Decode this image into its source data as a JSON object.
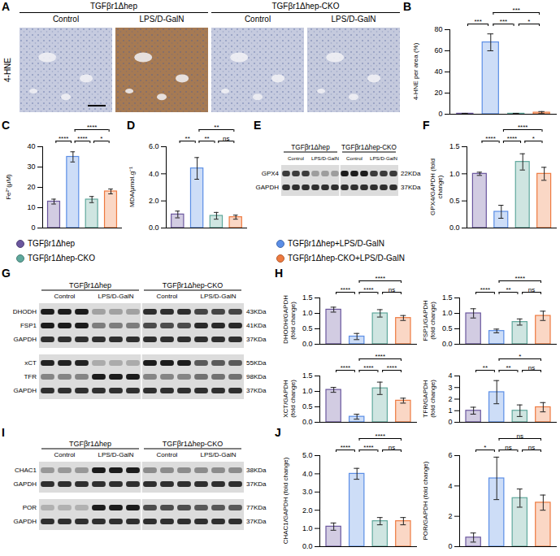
{
  "panel_labels": [
    "A",
    "B",
    "C",
    "D",
    "E",
    "F",
    "G",
    "H",
    "I",
    "J"
  ],
  "genotypes": [
    "TGFβr1Δhep",
    "TGFβr1Δhep-CKO"
  ],
  "treatments": [
    "Control",
    "LPS/D-GalN"
  ],
  "micrographs": {
    "stain": "4-HNE"
  },
  "groups": [
    {
      "name": "TGFβr1Δhep",
      "color": "#6b579e"
    },
    {
      "name": "TGFβr1Δhep+LPS/D-GalN",
      "color": "#5b8ee6"
    },
    {
      "name": "TGFβr1Δhep-CKO",
      "color": "#5fa89c"
    },
    {
      "name": "TGFβr1Δhep-CKO+LPS/D-GalN",
      "color": "#ee7a40"
    }
  ],
  "blots": [
    {
      "lanes_per_group": 3,
      "blocks": [
        [
          {
            "label": "GPX4",
            "kda": "22KDa"
          },
          {
            "label": "GAPDH",
            "kda": "37KDa"
          }
        ]
      ]
    },
    {
      "lanes_per_group": 3,
      "blocks": [
        [
          {
            "label": "DHODH",
            "kda": "43KDa"
          },
          {
            "label": "FSP1",
            "kda": "41KDa"
          },
          {
            "label": "GAPDH",
            "kda": "37KDa"
          }
        ],
        [
          {
            "label": "xCT",
            "kda": "55KDa"
          },
          {
            "label": "TFR",
            "kda": "98KDa"
          },
          {
            "label": "GAPDH",
            "kda": "37KDa"
          }
        ]
      ]
    },
    {
      "lanes_per_group": 3,
      "blocks": [
        [
          {
            "label": "CHAC1",
            "kda": "38KDa"
          },
          {
            "label": "GAPDH",
            "kda": "37KDa"
          }
        ],
        [
          {
            "label": "POR",
            "kda": "77KDa"
          },
          {
            "label": "GAPDH",
            "kda": "37KDa"
          }
        ]
      ]
    }
  ],
  "chart_data": [
    {
      "type": "bar",
      "ylabel": "4-HNE per area (%)",
      "categories": [
        null,
        null,
        null,
        null
      ],
      "values": [
        0.5,
        68,
        0.5,
        1.5
      ],
      "errors": [
        0.3,
        8,
        0.3,
        1
      ],
      "colors": [
        "#6b579e",
        "#5b8ee6",
        "#5fa89c",
        "#ee7a40"
      ],
      "ylim": [
        0,
        80
      ],
      "yticks": [
        0,
        20,
        40,
        60,
        80
      ],
      "tick_labels": "y",
      "comparisons": [
        {
          "groups": [
            0,
            1
          ],
          "label": "***"
        },
        {
          "groups": [
            1,
            2
          ],
          "label": "***"
        },
        {
          "groups": [
            2,
            3
          ],
          "label": "*"
        },
        {
          "groups": [
            1,
            3
          ],
          "label": "***"
        }
      ]
    },
    {
      "type": "bar",
      "ylabel": "Fe²⁺(μM)",
      "categories": [
        null,
        null,
        null,
        null
      ],
      "values": [
        13,
        35,
        14,
        18
      ],
      "errors": [
        1.2,
        2.5,
        1.5,
        1.2
      ],
      "colors": [
        "#6b579e",
        "#5b8ee6",
        "#5fa89c",
        "#ee7a40"
      ],
      "ylim": [
        0,
        40
      ],
      "yticks": [
        0,
        10,
        20,
        30,
        40
      ],
      "tick_labels": "y",
      "comparisons": [
        {
          "groups": [
            0,
            1
          ],
          "label": "****"
        },
        {
          "groups": [
            1,
            2
          ],
          "label": "****"
        },
        {
          "groups": [
            2,
            3
          ],
          "label": "*"
        },
        {
          "groups": [
            1,
            3
          ],
          "label": "****"
        }
      ]
    },
    {
      "type": "bar",
      "ylabel": "MDA/μmol.g⁻¹",
      "categories": [
        null,
        null,
        null,
        null
      ],
      "values": [
        1.0,
        4.4,
        0.9,
        0.8
      ],
      "errors": [
        0.25,
        0.8,
        0.25,
        0.15
      ],
      "colors": [
        "#6b579e",
        "#5b8ee6",
        "#5fa89c",
        "#ee7a40"
      ],
      "ylim": [
        0,
        6
      ],
      "yticks": [
        {
          "value": 0,
          "label": "0.0"
        },
        {
          "value": 2,
          "label": "2.0"
        },
        {
          "value": 4,
          "label": "4.0"
        },
        {
          "value": 6,
          "label": "6.0"
        }
      ],
      "tick_labels": "y",
      "comparisons": [
        {
          "groups": [
            0,
            1
          ],
          "label": "**"
        },
        {
          "groups": [
            1,
            2
          ],
          "label": "**"
        },
        {
          "groups": [
            2,
            3
          ],
          "label": "ns"
        },
        {
          "groups": [
            1,
            3
          ],
          "label": "**"
        }
      ]
    },
    {
      "type": "bar",
      "ylabel": "GPX4/GAPDH (fold change)",
      "categories": [
        null,
        null,
        null,
        null
      ],
      "values": [
        1.0,
        0.3,
        1.22,
        1.0
      ],
      "errors": [
        0.03,
        0.12,
        0.15,
        0.12
      ],
      "colors": [
        "#6b579e",
        "#5b8ee6",
        "#5fa89c",
        "#ee7a40"
      ],
      "ylim": [
        0,
        1.5
      ],
      "yticks": [
        {
          "value": 0,
          "label": "0.0"
        },
        {
          "value": 0.5,
          "label": "0.5"
        },
        {
          "value": 1,
          "label": "1.0"
        },
        {
          "value": 1.5,
          "label": "1.5"
        }
      ],
      "tick_labels": "y",
      "comparisons": [
        {
          "groups": [
            0,
            1
          ],
          "label": "****"
        },
        {
          "groups": [
            1,
            2
          ],
          "label": "****"
        },
        {
          "groups": [
            2,
            3
          ],
          "label": "*"
        },
        {
          "groups": [
            1,
            3
          ],
          "label": "****"
        }
      ]
    },
    {
      "type": "bar",
      "ylabel": "DHODH/GAPDH (fold change)",
      "categories": [
        null,
        null,
        null,
        null
      ],
      "values": [
        1.12,
        0.25,
        1.0,
        0.85
      ],
      "errors": [
        0.08,
        0.1,
        0.12,
        0.08
      ],
      "colors": [
        "#6b579e",
        "#5b8ee6",
        "#5fa89c",
        "#ee7a40"
      ],
      "ylim": [
        0,
        1.5
      ],
      "yticks": [
        {
          "value": 0,
          "label": "0.0"
        },
        {
          "value": 0.5,
          "label": "0.5"
        },
        {
          "value": 1,
          "label": "1.0"
        },
        {
          "value": 1.5,
          "label": "1.5"
        }
      ],
      "tick_labels": "y",
      "comparisons": [
        {
          "groups": [
            0,
            1
          ],
          "label": "****"
        },
        {
          "groups": [
            1,
            2
          ],
          "label": "****"
        },
        {
          "groups": [
            2,
            3
          ],
          "label": "ns"
        },
        {
          "groups": [
            1,
            3
          ],
          "label": "****"
        }
      ]
    },
    {
      "type": "bar",
      "ylabel": "FSP1/GAPDH (fold change)",
      "categories": [
        null,
        null,
        null,
        null
      ],
      "values": [
        1.0,
        0.43,
        0.72,
        0.92
      ],
      "errors": [
        0.15,
        0.06,
        0.1,
        0.15
      ],
      "colors": [
        "#6b579e",
        "#5b8ee6",
        "#5fa89c",
        "#ee7a40"
      ],
      "ylim": [
        0,
        1.5
      ],
      "yticks": [
        {
          "value": 0,
          "label": "0.0"
        },
        {
          "value": 0.5,
          "label": "0.5"
        },
        {
          "value": 1,
          "label": "1.0"
        },
        {
          "value": 1.5,
          "label": "1.5"
        }
      ],
      "tick_labels": "y",
      "comparisons": [
        {
          "groups": [
            0,
            1
          ],
          "label": "****"
        },
        {
          "groups": [
            1,
            2
          ],
          "label": "**"
        },
        {
          "groups": [
            2,
            3
          ],
          "label": "ns"
        },
        {
          "groups": [
            1,
            3
          ],
          "label": "****"
        }
      ]
    },
    {
      "type": "bar",
      "ylabel": "XCT/GAPDH (fold change)",
      "categories": [
        null,
        null,
        null,
        null
      ],
      "values": [
        1.05,
        0.18,
        1.1,
        0.7
      ],
      "errors": [
        0.08,
        0.08,
        0.2,
        0.08
      ],
      "colors": [
        "#6b579e",
        "#5b8ee6",
        "#5fa89c",
        "#ee7a40"
      ],
      "ylim": [
        0,
        1.5
      ],
      "yticks": [
        {
          "value": 0,
          "label": "0.0"
        },
        {
          "value": 0.5,
          "label": "0.5"
        },
        {
          "value": 1,
          "label": "1.0"
        },
        {
          "value": 1.5,
          "label": "1.5"
        }
      ],
      "tick_labels": "y",
      "comparisons": [
        {
          "groups": [
            0,
            1
          ],
          "label": "****"
        },
        {
          "groups": [
            1,
            2
          ],
          "label": "****"
        },
        {
          "groups": [
            2,
            3
          ],
          "label": "****"
        },
        {
          "groups": [
            1,
            3
          ],
          "label": "****"
        }
      ]
    },
    {
      "type": "bar",
      "ylabel": "TFR/GAPDH (fold change)",
      "categories": [
        null,
        null,
        null,
        null
      ],
      "values": [
        1.0,
        2.6,
        1.0,
        1.3
      ],
      "errors": [
        0.3,
        1.0,
        0.5,
        0.4
      ],
      "colors": [
        "#6b579e",
        "#5b8ee6",
        "#5fa89c",
        "#ee7a40"
      ],
      "ylim": [
        0,
        4
      ],
      "yticks": [
        0,
        1,
        2,
        3,
        4
      ],
      "tick_labels": "y",
      "comparisons": [
        {
          "groups": [
            0,
            1
          ],
          "label": "**"
        },
        {
          "groups": [
            1,
            2
          ],
          "label": "**"
        },
        {
          "groups": [
            2,
            3
          ],
          "label": "ns"
        },
        {
          "groups": [
            1,
            3
          ],
          "label": "*"
        }
      ]
    },
    {
      "type": "bar",
      "ylabel": "CHAC1/GAPDH (fold change)",
      "categories": [
        null,
        null,
        null,
        null
      ],
      "values": [
        1.1,
        4.0,
        1.4,
        1.4
      ],
      "errors": [
        0.2,
        0.3,
        0.2,
        0.2
      ],
      "colors": [
        "#6b579e",
        "#5b8ee6",
        "#5fa89c",
        "#ee7a40"
      ],
      "ylim": [
        0,
        5
      ],
      "yticks": [
        {
          "value": 0,
          "label": "0.0"
        },
        {
          "value": 1,
          "label": "1.0"
        },
        {
          "value": 2,
          "label": "2.0"
        },
        {
          "value": 3,
          "label": "3.0"
        },
        {
          "value": 4,
          "label": "4.0"
        },
        {
          "value": 5,
          "label": "5.0"
        }
      ],
      "tick_labels": "y",
      "comparisons": [
        {
          "groups": [
            0,
            1
          ],
          "label": "****"
        },
        {
          "groups": [
            1,
            2
          ],
          "label": "****"
        },
        {
          "groups": [
            2,
            3
          ],
          "label": "ns"
        },
        {
          "groups": [
            1,
            3
          ],
          "label": "****"
        }
      ]
    },
    {
      "type": "bar",
      "ylabel": "POR/GAPDH (fold change)",
      "categories": [
        null,
        null,
        null,
        null
      ],
      "values": [
        0.6,
        4.5,
        3.2,
        2.9
      ],
      "errors": [
        0.3,
        1.4,
        0.6,
        0.5
      ],
      "colors": [
        "#6b579e",
        "#5b8ee6",
        "#5fa89c",
        "#ee7a40"
      ],
      "ylim": [
        0,
        6
      ],
      "yticks": [
        0,
        2,
        4,
        6
      ],
      "tick_labels": "y",
      "comparisons": [
        {
          "groups": [
            0,
            1
          ],
          "label": "*"
        },
        {
          "groups": [
            1,
            2
          ],
          "label": "ns"
        },
        {
          "groups": [
            2,
            3
          ],
          "label": "ns"
        },
        {
          "groups": [
            1,
            3
          ],
          "label": "ns"
        }
      ]
    }
  ]
}
